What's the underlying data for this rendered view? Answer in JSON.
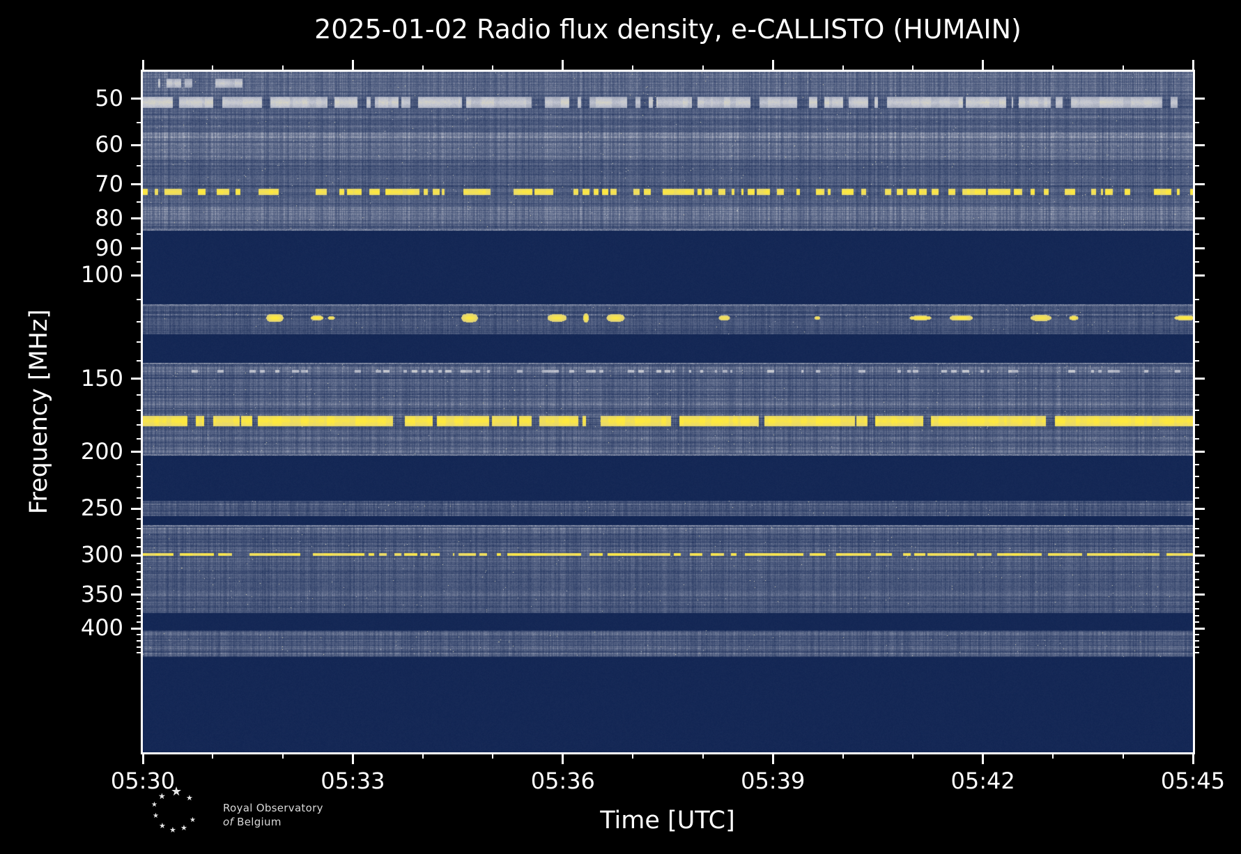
{
  "title": "2025-01-02 Radio flux density, e-CALLISTO (HUMAIN)",
  "axes": {
    "x_label": "Time [UTC]",
    "y_label": "Frequency [MHz]"
  },
  "logo": {
    "line1": "Royal Observatory",
    "line2_of": "of",
    "line2_rest": "Belgium"
  },
  "chart_data": {
    "type": "heatmap",
    "subtype": "radio-spectrogram",
    "title": "2025-01-02 Radio flux density, e-CALLISTO (HUMAIN)",
    "xlabel": "Time [UTC]",
    "ylabel": "Frequency [MHz]",
    "x_start_utc": "05:30",
    "x_end_utc": "05:45",
    "x_tick_labels": [
      "05:30",
      "05:33",
      "05:36",
      "05:39",
      "05:42",
      "05:45"
    ],
    "x_minor_tick_every_minutes": 1,
    "y_scale": "log",
    "y_tick_values": [
      50,
      60,
      70,
      80,
      90,
      100,
      150,
      200,
      250,
      300,
      350,
      400
    ],
    "y_tick_labels": [
      "50",
      "60",
      "70",
      "80",
      "90",
      "100",
      "150",
      "200",
      "250",
      "300",
      "350",
      "400"
    ],
    "y_minor_ticks_mhz": [
      55,
      65,
      75,
      85,
      95,
      110,
      120,
      130,
      140,
      160,
      170,
      180,
      190,
      210,
      220,
      230,
      240,
      260,
      270,
      280,
      290,
      310,
      320,
      330,
      340,
      360,
      370,
      380,
      390,
      410,
      420,
      430,
      440
    ],
    "freq_axis_top_mhz": 45,
    "freq_axis_bottom_mhz": 650,
    "data_freq_max_mhz": 447,
    "palette": {
      "background": "#000000",
      "blank_band": "#0d2150",
      "noise_mid": "#64708f",
      "noise_high": "#c4c7d2",
      "noise_pale": "#e8e1b9",
      "rfi_yellow": "#ffe945"
    },
    "noise_bands": [
      {
        "f0_mhz": 45,
        "f1_mhz": 84,
        "base": 0.34,
        "edge_bottom": true,
        "boosts": [
          {
            "f0": 45,
            "f1": 49,
            "add": 0.05
          },
          {
            "f0": 57,
            "f1": 63,
            "add": 0.1
          },
          {
            "f0": 76.5,
            "f1": 81.5,
            "add": 0.12
          }
        ]
      },
      {
        "f0_mhz": 112,
        "f1_mhz": 126,
        "base": 0.3,
        "edge_top": true,
        "boosts": []
      },
      {
        "f0_mhz": 141,
        "f1_mhz": 203,
        "base": 0.32,
        "edge_top": true,
        "edge_bottom": true,
        "boosts": [
          {
            "f0": 143,
            "f1": 147,
            "add": 0.1
          },
          {
            "f0": 150,
            "f1": 158,
            "add": 0.04
          },
          {
            "f0": 162,
            "f1": 168,
            "add": 0.07
          },
          {
            "f0": 183,
            "f1": 201,
            "add": 0.05
          }
        ]
      },
      {
        "f0_mhz": 242,
        "f1_mhz": 257,
        "base": 0.3,
        "boosts": [
          {
            "f0": 244,
            "f1": 248,
            "add": 0.06
          }
        ]
      },
      {
        "f0_mhz": 267,
        "f1_mhz": 376,
        "base": 0.31,
        "edge_top": true,
        "boosts": [
          {
            "f0": 269,
            "f1": 275,
            "add": 0.08
          },
          {
            "f0": 290,
            "f1": 296,
            "add": 0.04
          },
          {
            "f0": 302,
            "f1": 312,
            "add": 0.05
          },
          {
            "f0": 344,
            "f1": 352,
            "add": 0.05
          }
        ]
      },
      {
        "f0_mhz": 403,
        "f1_mhz": 447,
        "base": 0.31,
        "boosts": [
          {
            "f0": 405,
            "f1": 410,
            "add": 0.06
          },
          {
            "f0": 428,
            "f1": 434,
            "add": 0.05
          }
        ]
      }
    ],
    "rfi_lines": [
      {
        "f0_mhz": 49.6,
        "f1_mhz": 51.8,
        "style": "streaky",
        "duty": 0.85,
        "intensity": 0.6,
        "color": "pale"
      },
      {
        "f0_mhz": 46.2,
        "f1_mhz": 47.8,
        "style": "streaky",
        "duty": 0.6,
        "intensity": 0.5,
        "color": "pale",
        "x0": 0,
        "x1": 0.105
      },
      {
        "f0_mhz": 71.3,
        "f1_mhz": 72.8,
        "style": "dashed",
        "duty": 0.5,
        "intensity": 1,
        "color": "yellow"
      },
      {
        "f0_mhz": 116.6,
        "f1_mhz": 119.8,
        "style": "blotch",
        "duty": 0.3,
        "intensity": 1,
        "color": "yellow"
      },
      {
        "f0_mhz": 144.8,
        "f1_mhz": 146.2,
        "style": "dashed",
        "duty": 0.28,
        "intensity": 0.5,
        "color": "pale"
      },
      {
        "f0_mhz": 173.5,
        "f1_mhz": 180.5,
        "style": "densedash",
        "duty": 0.92,
        "intensity": 1,
        "color": "yellow"
      },
      {
        "f0_mhz": 297.3,
        "f1_mhz": 299.6,
        "style": "densedash",
        "duty": 0.78,
        "intensity": 0.9,
        "color": "yellow"
      }
    ]
  }
}
